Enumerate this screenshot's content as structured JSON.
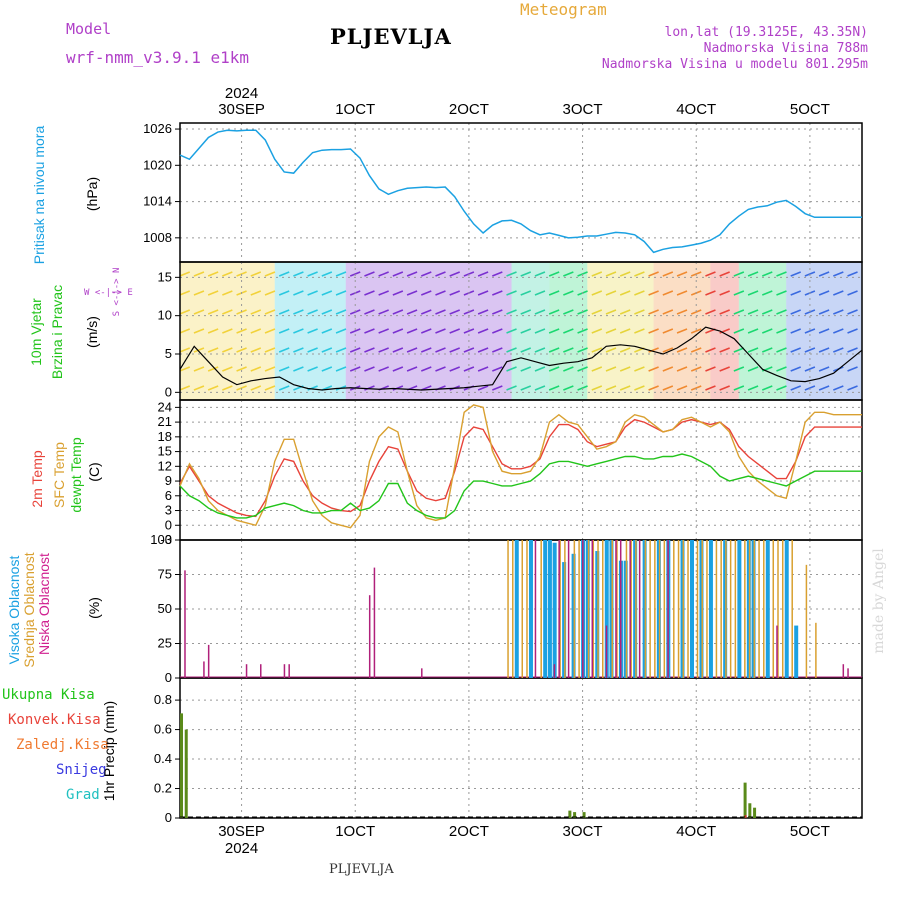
{
  "header": {
    "model_label": "Model",
    "model_name": "wrf-nmm_v3.9.1  e1km",
    "title": "PLJEVLJA",
    "product": "Meteogram",
    "lonlat": "lon,lat (19.3125E, 43.35N)",
    "altitude": "Nadmorska Visina 788m",
    "model_altitude": "Nadmorska Visina u modelu 801.295m",
    "footer_title": "PLJEVLJA",
    "watermark": "made by Angel"
  },
  "colors": {
    "pressure": "#1ba1e2",
    "temp2m": "#e8433a",
    "sfc_temp": "#d9a030",
    "dewpt": "#22c41a",
    "high_cloud": "#1ba1e2",
    "mid_cloud": "#d9a030",
    "low_cloud": "#b0207a",
    "total_precip": "#5a8a1a",
    "conv_precip": "#c0392b",
    "header_purple": "#b040c8",
    "header_orange": "#e6a93a"
  },
  "panel_labels": {
    "pressure": [
      "Pritisak na nivou mora",
      "(hPa)"
    ],
    "wind": [
      "10m Vjetar",
      "Brzina i Pravac",
      "(m/s)"
    ],
    "wind_compass": "W <-|-> E",
    "wind_compass_v": "S <-|-> N",
    "temp": [
      "2m Temp",
      "SFC Temp",
      "dewpt Temp",
      "(C)"
    ],
    "cloud": [
      "Visoka Oblacnost",
      "Srednja Oblacnost",
      "Niska Oblacnost",
      "(%)"
    ],
    "precip_legend": [
      "Ukupna Kisa",
      "Konvek.Kisa",
      "Zaledj.Kisa",
      "Snijeg",
      "Grad"
    ],
    "precip_axis": "1hr Precip (mm)"
  },
  "x_axis": {
    "top_year": "2024",
    "bottom_year": "2024",
    "date_labels": [
      "30SEP",
      "1OCT",
      "2OCT",
      "3OCT",
      "4OCT",
      "5OCT"
    ]
  },
  "chart_data": [
    {
      "type": "line",
      "name_key": "pressure",
      "ylabel": "(hPa)",
      "yticks": [
        "1008",
        "1014",
        "1020",
        "1026"
      ],
      "ylim": [
        1004,
        1027
      ],
      "x_hours": [
        0,
        2,
        4,
        6,
        8,
        10,
        12,
        14,
        16,
        18,
        20,
        22,
        24,
        26,
        28,
        30,
        32,
        34,
        36,
        38,
        40,
        42,
        44,
        46,
        48,
        50,
        52,
        54,
        56,
        58,
        60,
        62,
        64,
        66,
        68,
        70,
        72,
        74,
        76,
        78,
        80,
        82,
        84,
        86,
        88,
        90,
        92,
        94,
        96,
        98,
        100,
        102,
        104,
        106,
        108,
        110,
        112,
        114,
        116,
        118,
        120,
        122,
        124,
        126,
        128,
        130,
        132,
        134,
        136,
        138,
        140,
        142,
        144
      ],
      "series": [
        {
          "values": [
            1021.7,
            1021.0,
            1022.8,
            1024.6,
            1025.5,
            1025.8,
            1025.7,
            1025.8,
            1025.8,
            1024.2,
            1021.0,
            1018.9,
            1018.7,
            1020.5,
            1022.1,
            1022.5,
            1022.6,
            1022.6,
            1022.7,
            1021.2,
            1018.3,
            1016.1,
            1015.2,
            1015.8,
            1016.2,
            1016.3,
            1016.4,
            1016.3,
            1016.4,
            1014.8,
            1012.4,
            1010.3,
            1008.8,
            1010.1,
            1010.8,
            1010.9,
            1010.3,
            1009.2,
            1008.5,
            1008.8,
            1008.4,
            1008.0,
            1008.1,
            1008.3,
            1008.3,
            1008.6,
            1008.9,
            1008.8,
            1008.5,
            1007.4,
            1005.6,
            1006.1,
            1006.4,
            1006.5,
            1006.8,
            1007.1,
            1007.6,
            1008.5,
            1010.3,
            1011.6,
            1012.7,
            1013.1,
            1013.3,
            1013.9,
            1014.2,
            1013.2,
            1012.0,
            1011.4,
            1011.4,
            1011.4,
            1011.4,
            1011.4,
            1011.4
          ]
        }
      ]
    },
    {
      "type": "line",
      "name_key": "wind",
      "ylabel": "(m/s)",
      "yticks": [
        "0",
        "5",
        "10",
        "15"
      ],
      "ylim": [
        -1,
        17
      ],
      "x_hours": [
        0,
        3,
        6,
        9,
        12,
        15,
        18,
        21,
        24,
        27,
        30,
        33,
        36,
        39,
        42,
        45,
        48,
        51,
        54,
        57,
        60,
        63,
        66,
        69,
        72,
        75,
        78,
        81,
        84,
        87,
        90,
        93,
        96,
        99,
        102,
        105,
        108,
        111,
        114,
        117,
        120,
        123,
        126,
        129,
        132,
        135,
        138,
        141,
        144
      ],
      "series": [
        {
          "values": [
            3,
            6,
            4,
            2,
            1,
            1.5,
            1.8,
            2,
            1,
            0.5,
            0.3,
            0.5,
            0.6,
            0.5,
            0.4,
            0.5,
            0.4,
            0.3,
            0.4,
            0.5,
            0.6,
            0.8,
            1,
            4,
            4.5,
            4,
            3.5,
            3.8,
            4,
            4.5,
            6,
            6.2,
            6,
            5.5,
            5,
            5.8,
            7,
            8.5,
            8,
            7,
            5,
            3,
            2.2,
            1.5,
            1.4,
            1.8,
            2.5,
            4,
            5.5
          ]
        }
      ]
    },
    {
      "type": "line",
      "name_key": "temperature",
      "ylabel": "(C)",
      "yticks": [
        "-3",
        "0",
        "3",
        "6",
        "9",
        "12",
        "15",
        "18",
        "21",
        "24"
      ],
      "ylim": [
        -3,
        25.5
      ],
      "x_hours": [
        0,
        2,
        4,
        6,
        8,
        10,
        12,
        14,
        16,
        18,
        20,
        22,
        24,
        26,
        28,
        30,
        32,
        34,
        36,
        38,
        40,
        42,
        44,
        46,
        48,
        50,
        52,
        54,
        56,
        58,
        60,
        62,
        64,
        66,
        68,
        70,
        72,
        74,
        76,
        78,
        80,
        82,
        84,
        86,
        88,
        90,
        92,
        94,
        96,
        98,
        100,
        102,
        104,
        106,
        108,
        110,
        112,
        114,
        116,
        118,
        120,
        122,
        124,
        126,
        128,
        130,
        132,
        134,
        136,
        138,
        140,
        142,
        144
      ],
      "series": [
        {
          "key": "temp2m",
          "values": [
            8.5,
            12,
            9,
            6,
            4.5,
            3.5,
            2.5,
            2,
            1.8,
            5,
            10,
            13.5,
            13,
            9,
            6,
            4.5,
            3.5,
            3,
            2.8,
            4,
            9,
            13,
            16,
            15.5,
            11,
            7,
            5.5,
            5,
            5.5,
            11,
            18,
            20,
            19.5,
            16,
            12.5,
            11.5,
            11.5,
            12,
            13.5,
            18,
            20.5,
            20.5,
            19.5,
            17,
            16,
            16.5,
            17,
            20,
            21.5,
            21,
            20,
            19,
            19.5,
            21,
            21.5,
            21,
            20.5,
            21,
            19.5,
            16,
            14,
            12.5,
            11,
            9.5,
            9.5,
            13,
            18,
            20,
            20,
            20,
            20,
            20,
            20
          ]
        },
        {
          "key": "sfc_temp",
          "values": [
            8,
            12.5,
            9.5,
            5,
            3,
            2,
            1,
            0.5,
            0,
            4,
            13,
            17.5,
            17.5,
            11,
            5,
            2,
            0.5,
            0,
            -0.5,
            2,
            13,
            18,
            20,
            19,
            11,
            4,
            1.5,
            1,
            1.5,
            12,
            23,
            24.5,
            24,
            15,
            11,
            10.5,
            10.5,
            11,
            14,
            21,
            22.5,
            21,
            20.5,
            18,
            15.5,
            16,
            17,
            21,
            22.5,
            22,
            20.5,
            19,
            19.5,
            21.5,
            22,
            21,
            20,
            21,
            19,
            14,
            11,
            9,
            7.5,
            6,
            5.5,
            13,
            21,
            23,
            23,
            22.5,
            22.5,
            22.5,
            22.5
          ]
        },
        {
          "key": "dewpt",
          "values": [
            8,
            6,
            5,
            3.5,
            2.5,
            2,
            1.5,
            1.5,
            2,
            3.5,
            4,
            4.5,
            4,
            3,
            2.5,
            2.5,
            3,
            3,
            4.5,
            3,
            3.5,
            5,
            8.5,
            8.5,
            4.5,
            3,
            2,
            1.5,
            1.5,
            3,
            7,
            9,
            9,
            8.5,
            8,
            8,
            8.5,
            9,
            10.5,
            12.5,
            13,
            13,
            12.5,
            12,
            12.5,
            13,
            13.5,
            14,
            14,
            13.5,
            13.5,
            14,
            14,
            14.5,
            14,
            13,
            12,
            10,
            9,
            9.5,
            10,
            9.5,
            9,
            8.5,
            8,
            9,
            10,
            11,
            11,
            11,
            11,
            11,
            11
          ]
        }
      ]
    },
    {
      "type": "bar",
      "name_key": "cloud",
      "ylabel": "(%)",
      "yticks": [
        "0",
        "25",
        "50",
        "75",
        "100"
      ],
      "ylim": [
        0,
        100
      ],
      "low_bars": [
        [
          1,
          78
        ],
        [
          5,
          12
        ],
        [
          6,
          24
        ],
        [
          14,
          10
        ],
        [
          17,
          10
        ],
        [
          22,
          10
        ],
        [
          23,
          10
        ],
        [
          40,
          60
        ],
        [
          41,
          80
        ],
        [
          51,
          7
        ],
        [
          75,
          100
        ],
        [
          79,
          10
        ],
        [
          80,
          100
        ],
        [
          82,
          100
        ],
        [
          85,
          100
        ],
        [
          87,
          100
        ],
        [
          90,
          38
        ],
        [
          92,
          100
        ],
        [
          93,
          100
        ],
        [
          95,
          100
        ],
        [
          97,
          100
        ],
        [
          103,
          100
        ],
        [
          126,
          38
        ],
        [
          140,
          10
        ],
        [
          141,
          7
        ]
      ],
      "mid_bars": [
        [
          69,
          100
        ],
        [
          70,
          100
        ],
        [
          72,
          100
        ],
        [
          73,
          100
        ],
        [
          76,
          100
        ],
        [
          80,
          100
        ],
        [
          81,
          100
        ],
        [
          83,
          100
        ],
        [
          84,
          100
        ],
        [
          86,
          100
        ],
        [
          87,
          100
        ],
        [
          88,
          100
        ],
        [
          89,
          100
        ],
        [
          91,
          100
        ],
        [
          92,
          100
        ],
        [
          94,
          100
        ],
        [
          95,
          100
        ],
        [
          96,
          100
        ],
        [
          98,
          100
        ],
        [
          99,
          100
        ],
        [
          100,
          100
        ],
        [
          101,
          100
        ],
        [
          102,
          100
        ],
        [
          104,
          100
        ],
        [
          105,
          100
        ],
        [
          106,
          100
        ],
        [
          107,
          100
        ],
        [
          109,
          100
        ],
        [
          110,
          100
        ],
        [
          111,
          100
        ],
        [
          113,
          100
        ],
        [
          114,
          100
        ],
        [
          115,
          100
        ],
        [
          116,
          100
        ],
        [
          117,
          100
        ],
        [
          119,
          100
        ],
        [
          120,
          100
        ],
        [
          121,
          100
        ],
        [
          122,
          100
        ],
        [
          123,
          100
        ],
        [
          125,
          100
        ],
        [
          126,
          100
        ],
        [
          127,
          100
        ],
        [
          129,
          100
        ],
        [
          132,
          82
        ],
        [
          134,
          40
        ]
      ],
      "high_bars": [
        [
          71,
          100
        ],
        [
          74,
          100
        ],
        [
          77,
          100
        ],
        [
          78,
          100
        ],
        [
          79,
          98
        ],
        [
          81,
          84
        ],
        [
          83,
          90
        ],
        [
          85,
          100
        ],
        [
          86,
          100
        ],
        [
          88,
          92
        ],
        [
          90,
          100
        ],
        [
          91,
          100
        ],
        [
          93,
          85
        ],
        [
          94,
          85
        ],
        [
          96,
          100
        ],
        [
          98,
          100
        ],
        [
          101,
          100
        ],
        [
          103,
          100
        ],
        [
          106,
          100
        ],
        [
          108,
          100
        ],
        [
          110,
          100
        ],
        [
          112,
          100
        ],
        [
          115,
          100
        ],
        [
          118,
          100
        ],
        [
          120,
          100
        ],
        [
          121,
          100
        ],
        [
          124,
          100
        ],
        [
          128,
          100
        ],
        [
          130,
          38
        ]
      ]
    },
    {
      "type": "bar",
      "name_key": "precip",
      "ylabel": "1hr Precip (mm)",
      "yticks": [
        "0",
        "0.2",
        "0.4",
        "0.6",
        "0.8"
      ],
      "ylim": [
        0,
        0.95
      ],
      "total_bars": [
        [
          0,
          0.71
        ],
        [
          1,
          0.6
        ],
        [
          82,
          0.05
        ],
        [
          83,
          0.04
        ],
        [
          85,
          0.04
        ],
        [
          119,
          0.24
        ],
        [
          120,
          0.1
        ],
        [
          121,
          0.07
        ]
      ],
      "conv_bars": [
        [
          119,
          0.02
        ]
      ]
    }
  ]
}
